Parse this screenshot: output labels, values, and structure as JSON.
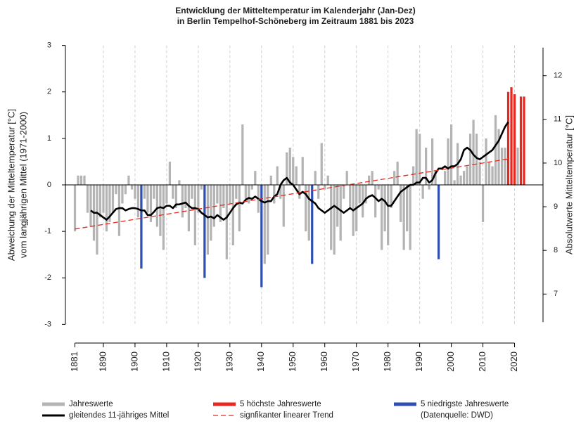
{
  "chart_data": {
    "type": "bar",
    "title": "Entwicklung der Mitteltemperatur im Kalenderjahr (Jan-Dez)",
    "subtitle": "in Berlin Tempelhof-Schöneberg im Zeitraum 1881 bis 2023",
    "y_label": [
      "Abweichung der Mitteltemperatur [°C]",
      "vom langjährigen Mittel (1971-2000)"
    ],
    "y2_label": "Absolutwerte Mitteltemperatur [°C]",
    "source": "(Datenquelle: DWD)",
    "grid": true,
    "xlim": [
      1878,
      2029
    ],
    "xticks": [
      1881,
      1890,
      1900,
      1910,
      1920,
      1930,
      1940,
      1950,
      1960,
      1970,
      1980,
      1990,
      2000,
      2010,
      2020
    ],
    "ylim": [
      -3.1,
      3.1
    ],
    "yticks": [
      -3,
      -2,
      -1,
      0,
      1,
      2,
      3
    ],
    "y2lim": [
      6.2,
      12.8
    ],
    "y2ticks": [
      7,
      8,
      9,
      10,
      11,
      12
    ],
    "x": [
      1881,
      1882,
      1883,
      1884,
      1885,
      1886,
      1887,
      1888,
      1889,
      1890,
      1891,
      1892,
      1893,
      1894,
      1895,
      1896,
      1897,
      1898,
      1899,
      1900,
      1901,
      1902,
      1903,
      1904,
      1905,
      1906,
      1907,
      1908,
      1909,
      1910,
      1911,
      1912,
      1913,
      1914,
      1915,
      1916,
      1917,
      1918,
      1919,
      1920,
      1921,
      1922,
      1923,
      1924,
      1925,
      1926,
      1927,
      1928,
      1929,
      1930,
      1931,
      1932,
      1933,
      1934,
      1935,
      1936,
      1937,
      1938,
      1939,
      1940,
      1941,
      1942,
      1943,
      1944,
      1945,
      1946,
      1947,
      1948,
      1949,
      1950,
      1951,
      1952,
      1953,
      1954,
      1955,
      1956,
      1957,
      1958,
      1959,
      1960,
      1961,
      1962,
      1963,
      1964,
      1965,
      1966,
      1967,
      1968,
      1969,
      1970,
      1971,
      1972,
      1973,
      1974,
      1975,
      1976,
      1977,
      1978,
      1979,
      1980,
      1981,
      1982,
      1983,
      1984,
      1985,
      1986,
      1987,
      1988,
      1989,
      1990,
      1991,
      1992,
      1993,
      1994,
      1995,
      1996,
      1997,
      1998,
      1999,
      2000,
      2001,
      2002,
      2003,
      2004,
      2005,
      2006,
      2007,
      2008,
      2009,
      2010,
      2011,
      2012,
      2013,
      2014,
      2015,
      2016,
      2017,
      2018,
      2019,
      2020,
      2021,
      2022,
      2023
    ],
    "series": [
      {
        "name": "Jahreswerte",
        "type": "bar",
        "color": "#b4b4b4",
        "values": [
          -1.0,
          0.2,
          0.2,
          0.2,
          -0.6,
          -0.9,
          -1.2,
          -1.5,
          -0.7,
          -0.6,
          -1.0,
          -0.8,
          -0.6,
          -0.2,
          -1.1,
          -0.4,
          -0.2,
          0.2,
          -0.1,
          -0.3,
          -0.7,
          null,
          -0.3,
          -0.6,
          -0.8,
          -0.3,
          -0.9,
          -1.1,
          -1.4,
          -0.4,
          0.5,
          -0.3,
          -0.5,
          0.1,
          -0.7,
          -0.5,
          -1.0,
          -0.3,
          -1.3,
          -0.6,
          -0.1,
          null,
          -1.5,
          -1.2,
          -0.9,
          -0.4,
          -0.8,
          -0.5,
          -1.6,
          -0.4,
          -1.3,
          -0.3,
          -1.0,
          1.3,
          -0.3,
          -0.4,
          -0.1,
          0.3,
          -0.6,
          null,
          -1.7,
          -1.5,
          0.2,
          -0.4,
          0.4,
          -0.3,
          -0.9,
          0.7,
          0.8,
          0.6,
          0.4,
          -0.3,
          0.6,
          -1.0,
          -1.2,
          null,
          0.3,
          -0.3,
          0.9,
          -0.1,
          0.2,
          -1.4,
          -1.5,
          -0.9,
          -1.2,
          -0.3,
          0.3,
          -0.5,
          -1.1,
          -1.0,
          -0.4,
          -0.7,
          -0.4,
          0.2,
          0.3,
          -0.7,
          -0.1,
          -1.4,
          -1.0,
          -1.3,
          -0.5,
          0.3,
          0.5,
          -0.8,
          -1.4,
          -1.0,
          -1.4,
          0.4,
          1.2,
          1.1,
          -0.3,
          0.8,
          -0.1,
          1.0,
          0.3,
          null,
          0.0,
          0.3,
          1.0,
          1.3,
          0.1,
          0.9,
          0.2,
          0.3,
          0.4,
          1.1,
          1.4,
          1.1,
          0.5,
          -0.8,
          1.0,
          0.5,
          0.4,
          1.5,
          1.2,
          0.8,
          0.8,
          null,
          null,
          null,
          0.8,
          null,
          null
        ]
      },
      {
        "name": "5 höchste Jahreswerte",
        "type": "bar",
        "color": "#e8281e",
        "values": [
          null,
          null,
          null,
          null,
          null,
          null,
          null,
          null,
          null,
          null,
          null,
          null,
          null,
          null,
          null,
          null,
          null,
          null,
          null,
          null,
          null,
          null,
          null,
          null,
          null,
          null,
          null,
          null,
          null,
          null,
          null,
          null,
          null,
          null,
          null,
          null,
          null,
          null,
          null,
          null,
          null,
          null,
          null,
          null,
          null,
          null,
          null,
          null,
          null,
          null,
          null,
          null,
          null,
          null,
          null,
          null,
          null,
          null,
          null,
          null,
          null,
          null,
          null,
          null,
          null,
          null,
          null,
          null,
          null,
          null,
          null,
          null,
          null,
          null,
          null,
          null,
          null,
          null,
          null,
          null,
          null,
          null,
          null,
          null,
          null,
          null,
          null,
          null,
          null,
          null,
          null,
          null,
          null,
          null,
          null,
          null,
          null,
          null,
          null,
          null,
          null,
          null,
          null,
          null,
          null,
          null,
          null,
          null,
          null,
          null,
          null,
          null,
          null,
          null,
          null,
          null,
          null,
          null,
          null,
          null,
          null,
          null,
          null,
          null,
          null,
          null,
          null,
          null,
          null,
          null,
          null,
          null,
          null,
          null,
          null,
          null,
          null,
          2.0,
          2.1,
          1.95,
          null,
          1.9,
          1.9
        ]
      },
      {
        "name": "5 niedrigste Jahreswerte",
        "type": "bar",
        "color": "#2f50b0",
        "values": [
          null,
          null,
          null,
          null,
          null,
          null,
          null,
          null,
          null,
          null,
          null,
          null,
          null,
          null,
          null,
          null,
          null,
          null,
          null,
          null,
          null,
          -1.8,
          null,
          null,
          null,
          null,
          null,
          null,
          null,
          null,
          null,
          null,
          null,
          null,
          null,
          null,
          null,
          null,
          null,
          null,
          null,
          -2.0,
          null,
          null,
          null,
          null,
          null,
          null,
          null,
          null,
          null,
          null,
          null,
          null,
          null,
          null,
          null,
          null,
          null,
          -2.2,
          null,
          null,
          null,
          null,
          null,
          null,
          null,
          null,
          null,
          null,
          null,
          null,
          null,
          null,
          null,
          -1.7,
          null,
          null,
          null,
          null,
          null,
          null,
          null,
          null,
          null,
          null,
          null,
          null,
          null,
          null,
          null,
          null,
          null,
          null,
          null,
          null,
          null,
          null,
          null,
          null,
          null,
          null,
          null,
          null,
          null,
          null,
          null,
          null,
          null,
          null,
          null,
          null,
          null,
          null,
          null,
          -1.6,
          null,
          null,
          null,
          null,
          null,
          null,
          null,
          null,
          null,
          null,
          null,
          null,
          null,
          null,
          null,
          null,
          null,
          null,
          null,
          null,
          null,
          null,
          null,
          null,
          null,
          null,
          null
        ]
      },
      {
        "name": "gleitendes 11-jähriges Mittel",
        "type": "line",
        "color": "#000000",
        "values": [
          null,
          null,
          null,
          null,
          null,
          -0.55,
          -0.6,
          -0.6,
          -0.65,
          -0.7,
          -0.75,
          -0.68,
          -0.6,
          -0.52,
          -0.5,
          -0.5,
          -0.55,
          -0.52,
          -0.5,
          -0.5,
          -0.52,
          -0.55,
          -0.55,
          -0.65,
          -0.65,
          -0.58,
          -0.5,
          -0.48,
          -0.5,
          -0.45,
          -0.45,
          -0.5,
          -0.42,
          -0.42,
          -0.4,
          -0.38,
          -0.45,
          -0.5,
          -0.5,
          -0.52,
          -0.6,
          -0.65,
          -0.7,
          -0.68,
          -0.72,
          -0.65,
          -0.7,
          -0.75,
          -0.7,
          -0.6,
          -0.5,
          -0.42,
          -0.38,
          -0.4,
          -0.32,
          -0.28,
          -0.3,
          -0.25,
          -0.3,
          -0.35,
          -0.38,
          -0.35,
          -0.35,
          -0.25,
          -0.2,
          0.0,
          0.1,
          0.15,
          0.05,
          0.0,
          -0.1,
          -0.2,
          -0.15,
          -0.2,
          -0.3,
          -0.35,
          -0.4,
          -0.5,
          -0.55,
          -0.6,
          -0.55,
          -0.5,
          -0.45,
          -0.5,
          -0.55,
          -0.6,
          -0.55,
          -0.5,
          -0.55,
          -0.5,
          -0.45,
          -0.4,
          -0.3,
          -0.25,
          -0.22,
          -0.28,
          -0.35,
          -0.3,
          -0.35,
          -0.45,
          -0.45,
          -0.35,
          -0.25,
          -0.15,
          -0.1,
          -0.05,
          0.0,
          0.0,
          0.05,
          0.05,
          0.15,
          0.15,
          0.05,
          0.1,
          0.25,
          0.35,
          0.35,
          0.4,
          0.35,
          0.4,
          0.4,
          0.45,
          0.55,
          0.75,
          0.8,
          0.75,
          0.65,
          0.58,
          0.55,
          0.6,
          0.65,
          0.7,
          0.75,
          0.85,
          0.95,
          1.1,
          1.25,
          1.35,
          null,
          null,
          null,
          null,
          null
        ]
      },
      {
        "name": "signfikanter linearer Trend",
        "type": "line",
        "color": "#e8281e",
        "dashed": true,
        "x": [
          1881,
          2019
        ],
        "values": [
          -0.95,
          0.57
        ]
      }
    ]
  }
}
